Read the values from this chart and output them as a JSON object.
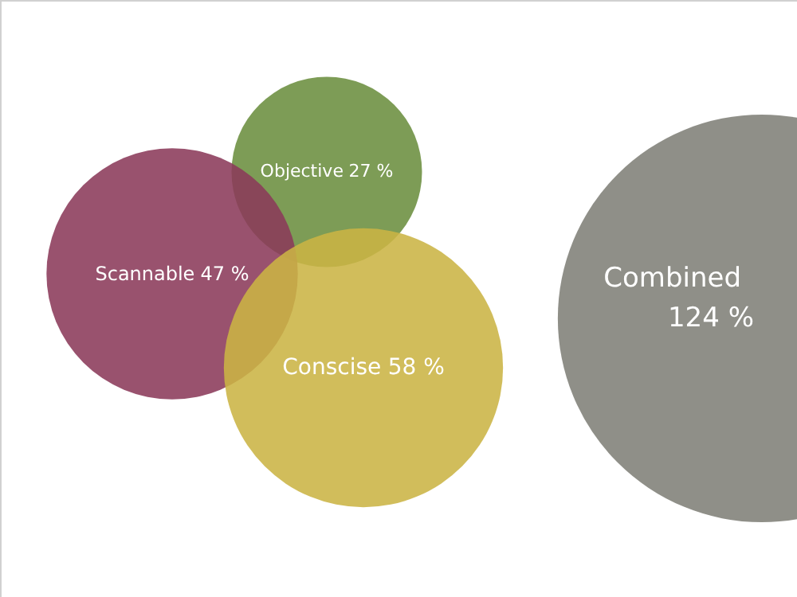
{
  "chart_data": {
    "type": "other",
    "categories": [
      "Objective",
      "Scannable",
      "Conscise",
      "Combined"
    ],
    "values": [
      27,
      47,
      58,
      124
    ],
    "value_labels": [
      "27 %",
      "47 %",
      "58 %",
      "124 %"
    ],
    "colors": [
      "#6b8e3f",
      "#8b3a5a",
      "#cbb444",
      "#7f7f78"
    ]
  }
}
